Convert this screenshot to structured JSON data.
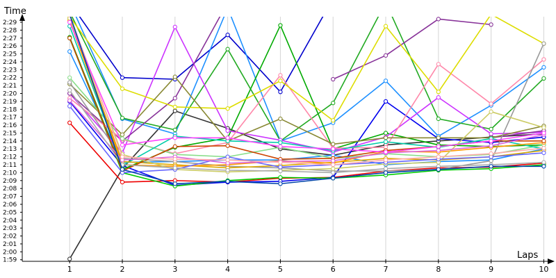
{
  "chart_data": {
    "type": "line",
    "title": "",
    "ylabel": "Time",
    "xlabel": "Laps",
    "x": [
      1,
      2,
      3,
      4,
      5,
      6,
      7,
      8,
      9,
      10
    ],
    "xlim": [
      0.1,
      10.1
    ],
    "ylim_seconds": [
      118.8,
      149.7
    ],
    "grid": "vertical",
    "legend": "none",
    "ytick_labels": [
      "1:59",
      "2:00",
      "2:01",
      "2:02",
      "2:03",
      "2:04",
      "2:05",
      "2:06",
      "2:07",
      "2:08",
      "2:09",
      "2:10",
      "2:11",
      "2:12",
      "2:13",
      "2:14",
      "2:15",
      "2:16",
      "2:17",
      "2:18",
      "2:19",
      "2:20",
      "2:21",
      "2:22",
      "2:23",
      "2:24",
      "2:25",
      "2:26",
      "2:27",
      "2:28",
      "2:29"
    ],
    "xtick_labels": [
      "1",
      "2",
      "3",
      "4",
      "5",
      "6",
      "7",
      "8",
      "9",
      "10"
    ],
    "series": [
      {
        "color": "#333333",
        "values": [
          "1:59.1",
          "2:10.5",
          "2:17.8",
          "2:15.6",
          "2:13.0",
          "2:12.2",
          "2:13.5",
          "2:14.0",
          "2:14.5",
          "2:14.9"
        ]
      },
      {
        "color": "#ee0000",
        "values": [
          "2:16.3",
          "2:08.8",
          "2:09.0",
          "2:08.8",
          "2:09.3",
          "2:09.4",
          "2:10.2",
          "2:10.6",
          "2:10.7",
          "2:11.2"
        ]
      },
      {
        "color": "#0000cc",
        "values": [
          "2:31.5",
          "2:22.0",
          "2:21.8",
          "2:27.4",
          "2:20.2",
          "2:32.0",
          null,
          null,
          null,
          null
        ]
      },
      {
        "color": "#0000ee",
        "values": [
          "2:19.0",
          "2:10.9",
          "2:08.4",
          "2:08.8",
          "2:08.9",
          "2:09.4",
          "2:19.0",
          "2:14.3",
          "2:13.8",
          "2:14.5"
        ]
      },
      {
        "color": "#1e90ff",
        "values": [
          "2:31.5",
          "2:16.8",
          "2:14.9",
          "2:30.8",
          "2:14.0",
          "2:16.3",
          "2:21.6",
          "2:14.6",
          "2:18.5",
          "2:23.3"
        ]
      },
      {
        "color": "#1e90ff",
        "values": [
          "2:25.3",
          "2:11.3",
          "2:11.4",
          "2:11.6",
          "2:11.6",
          "2:12.2",
          "2:11.0",
          "2:11.4",
          "2:11.6",
          "2:13.0"
        ]
      },
      {
        "color": "#00aa00",
        "values": [
          "2:27.1",
          "2:10.4",
          "2:13.2",
          "2:14.4",
          "2:28.6",
          "2:13.0",
          "2:15.0",
          "2:13.5",
          "2:13.3",
          "2:13.5"
        ]
      },
      {
        "color": "#22aa22",
        "values": [
          "2:30.3",
          "2:16.9",
          "2:15.4",
          "2:25.6",
          "2:14.0",
          "2:18.8",
          "2:31.5",
          "2:16.8",
          "2:15.5",
          "2:21.9"
        ]
      },
      {
        "color": "#00cc00",
        "values": [
          "2:27.0",
          "2:10.0",
          "2:08.3",
          "2:09.0",
          "2:09.4",
          "2:09.3",
          "2:09.7",
          "2:10.3",
          "2:10.5",
          "2:11.0"
        ]
      },
      {
        "color": "#cc33ff",
        "values": [
          "2:20.0",
          "2:12.5",
          "2:28.4",
          "2:15.3",
          "2:14.1",
          "2:12.6",
          "2:14.5",
          "2:19.5",
          "2:14.9",
          "2:15.1"
        ]
      },
      {
        "color": "#883399",
        "values": [
          "2:20.0",
          "2:14.0",
          "2:19.4",
          "2:31.5",
          null,
          "2:21.8",
          "2:24.8",
          "2:29.4",
          "2:28.7",
          null
        ]
      },
      {
        "color": "#883399",
        "values": [
          null,
          null,
          null,
          null,
          null,
          null,
          null,
          null,
          "2:14.4",
          "2:15.3"
        ]
      },
      {
        "color": "#ff88aa",
        "values": [
          "2:19.4",
          "2:14.2",
          "2:12.4",
          "2:13.8",
          "2:22.3",
          "2:13.1",
          "2:13.2",
          "2:23.7",
          "2:18.7",
          "2:24.3"
        ]
      },
      {
        "color": "#dddd00",
        "values": [
          "2:29.7",
          "2:20.6",
          "2:18.3",
          "2:18.1",
          "2:21.6",
          "2:16.6",
          "2:28.5",
          "2:20.2",
          "2:30.0",
          "2:26.3"
        ]
      },
      {
        "color": "#888833",
        "values": [
          "2:21.2",
          "2:14.8",
          "2:22.1",
          "2:14.0",
          "2:16.8",
          "2:13.6",
          "2:14.4",
          "2:14.4",
          "2:14.4",
          "2:15.9"
        ]
      },
      {
        "color": "#999999",
        "values": [
          "2:21.4",
          "2:11.8",
          "2:11.4",
          "2:10.8",
          "2:10.6",
          "2:10.2",
          "2:10.2",
          "2:10.4",
          "2:11.5",
          "2:26.3"
        ]
      },
      {
        "color": "#88dd88",
        "values": [
          "2:22.0",
          "2:14.3",
          "2:12.3",
          "2:12.0",
          "2:13.2",
          "2:11.8",
          "2:12.4",
          "2:12.0",
          "2:12.3",
          "2:13.5"
        ]
      },
      {
        "color": "#00ccaa",
        "values": [
          "2:28.5",
          "2:10.9",
          "2:14.6",
          "2:14.0",
          "2:13.8",
          "2:12.8",
          "2:13.9",
          "2:13.2",
          "2:14.3",
          "2:13.0"
        ]
      },
      {
        "color": "#ddaa00",
        "values": [
          "2:29.4",
          "2:11.4",
          "2:11.0",
          "2:10.6",
          "2:10.9",
          "2:11.3",
          "2:11.8",
          "2:11.6",
          "2:12.0",
          "2:12.8"
        ]
      },
      {
        "color": "#ff9900",
        "values": [
          "2:29.2",
          "2:11.0",
          "2:10.8",
          "2:11.0",
          "2:11.5",
          "2:11.2",
          "2:12.7",
          "2:12.6",
          "2:13.2",
          "2:13.8"
        ]
      },
      {
        "color": "#cc4400",
        "values": [
          "2:27.0",
          "2:10.2",
          "2:13.3",
          "2:13.4",
          "2:11.7",
          "2:11.8",
          "2:12.8",
          "2:13.3",
          "2:14.0",
          "2:14.0"
        ]
      },
      {
        "color": "#cccc66",
        "values": [
          "2:29.5",
          "2:12.3",
          "2:10.4",
          "2:10.1",
          "2:10.3",
          "2:10.5",
          "2:11.1",
          "2:11.3",
          "2:17.7",
          "2:15.7"
        ]
      },
      {
        "color": "#6666ff",
        "values": [
          "2:18.4",
          "2:10.0",
          "2:10.4",
          "2:12.0",
          "2:10.7",
          "2:11.0",
          "2:11.3",
          "2:11.7",
          "2:12.0",
          "2:12.5"
        ]
      },
      {
        "color": "#dd66dd",
        "values": [
          "2:19.1",
          "2:11.6",
          "2:12.0",
          "2:11.2",
          "2:11.4",
          "2:11.5",
          "2:12.5",
          "2:12.8",
          "2:13.4",
          "2:14.8"
        ]
      },
      {
        "color": "#aaaaaa",
        "values": [
          "2:20.4",
          "2:11.0",
          "2:10.6",
          "2:10.3",
          "2:10.2",
          "2:10.0",
          "2:10.5",
          "2:10.8",
          "2:11.0",
          "2:11.3"
        ]
      },
      {
        "color": "#ffaaaa",
        "values": [
          "2:29.9",
          "2:12.0",
          "2:11.7",
          "2:11.6",
          "2:11.3",
          "2:11.0",
          "2:11.6",
          "2:12.0",
          "2:12.4",
          "2:13.1"
        ]
      },
      {
        "color": "#ff44ff",
        "values": [
          "2:29.0",
          "2:13.5",
          "2:14.4",
          "2:14.4",
          "2:13.3",
          "2:13.0",
          "2:12.6",
          "2:13.3",
          "2:14.0",
          "2:15.0"
        ]
      },
      {
        "color": "#0044aa",
        "values": [
          "2:30.0",
          "2:10.4",
          "2:08.6",
          "2:08.9",
          "2:08.6",
          "2:09.3",
          "2:10.0",
          "2:10.4",
          "2:10.8",
          "2:10.8"
        ]
      }
    ]
  }
}
